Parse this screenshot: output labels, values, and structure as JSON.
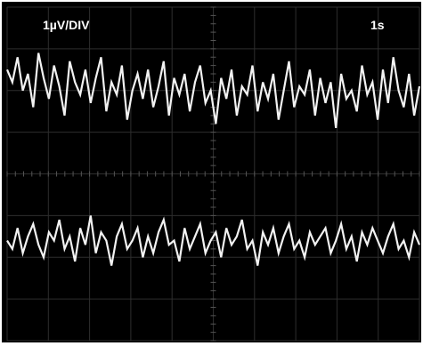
{
  "scope": {
    "volts_per_div_label": "1µV/DIV",
    "time_label": "1s",
    "trace_color": "#f2f2f2",
    "grid_color": "#2e2e2e",
    "background": "#000000"
  },
  "chart_data": {
    "type": "line",
    "title": "",
    "xlabel": "",
    "ylabel": "",
    "grid": true,
    "grid_divisions": {
      "x": 10,
      "y": 8
    },
    "x_unit_per_div": "1s",
    "y_unit_per_div": "1µV",
    "xlim": [
      0,
      10
    ],
    "ylim": [
      -4,
      4
    ],
    "series": [
      {
        "values": [
          2.5,
          2.2,
          2.8,
          2.0,
          2.4,
          1.6,
          2.9,
          2.3,
          1.8,
          2.6,
          2.1,
          1.4,
          2.7,
          2.2,
          1.9,
          2.5,
          1.7,
          2.3,
          2.8,
          1.5,
          2.2,
          1.9,
          2.6,
          1.3,
          2.0,
          2.4,
          1.8,
          2.5,
          1.6,
          2.1,
          2.7,
          1.4,
          2.3,
          1.9,
          2.4,
          1.5,
          2.2,
          2.6,
          1.7,
          2.0,
          1.2,
          2.3,
          1.8,
          2.5,
          1.4,
          2.1,
          1.9,
          2.6,
          1.5,
          2.2,
          1.8,
          2.4,
          1.3,
          2.0,
          2.7,
          1.6,
          2.1,
          1.9,
          2.5,
          1.4,
          2.3,
          1.7,
          2.2,
          1.1,
          2.4,
          1.8,
          2.0,
          1.5,
          2.6,
          1.9,
          2.2,
          1.3,
          2.5,
          1.7,
          2.8,
          2.0,
          1.6,
          2.4,
          1.4,
          2.1
        ]
      },
      {
        "values": [
          -1.6,
          -1.8,
          -1.3,
          -1.9,
          -1.5,
          -1.2,
          -1.7,
          -2.0,
          -1.4,
          -1.6,
          -1.1,
          -1.8,
          -1.5,
          -2.1,
          -1.3,
          -1.7,
          -1.0,
          -1.9,
          -1.4,
          -1.6,
          -2.2,
          -1.5,
          -1.2,
          -1.8,
          -1.6,
          -1.3,
          -2.0,
          -1.5,
          -1.9,
          -1.4,
          -1.1,
          -1.7,
          -1.6,
          -2.1,
          -1.3,
          -1.8,
          -1.5,
          -1.2,
          -1.9,
          -1.6,
          -1.4,
          -2.0,
          -1.3,
          -1.7,
          -1.5,
          -1.1,
          -1.8,
          -1.6,
          -2.2,
          -1.4,
          -1.7,
          -1.3,
          -1.9,
          -1.5,
          -1.2,
          -1.8,
          -1.6,
          -2.0,
          -1.4,
          -1.7,
          -1.5,
          -1.3,
          -1.9,
          -1.6,
          -1.2,
          -1.8,
          -1.5,
          -2.1,
          -1.4,
          -1.7,
          -1.3,
          -1.6,
          -1.9,
          -1.5,
          -1.2,
          -1.8,
          -1.6,
          -2.0,
          -1.4,
          -1.7
        ]
      }
    ]
  }
}
